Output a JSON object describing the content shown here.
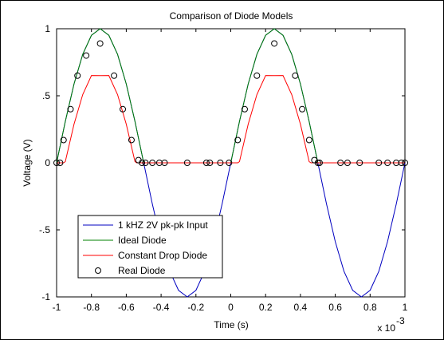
{
  "chart_data": {
    "type": "line",
    "title": "Comparison of Diode Models",
    "xlabel": "Time (s)",
    "ylabel": "Voltage (V)",
    "x_exponent_label": "x 10",
    "x_exponent_power": "-3",
    "xlim": [
      -1,
      1
    ],
    "ylim": [
      -1,
      1
    ],
    "xticks": [
      -1,
      -0.8,
      -0.6,
      -0.4,
      -0.2,
      0,
      0.2,
      0.4,
      0.6,
      0.8,
      1
    ],
    "xtick_labels": [
      "-1",
      "-0.8",
      "-0.6",
      "-0.4",
      "-0.2",
      "0",
      "0.2",
      "0.4",
      "0.6",
      "0.8",
      "1"
    ],
    "yticks": [
      -1,
      -0.5,
      0,
      0.5,
      1
    ],
    "ytick_labels": [
      "-1",
      "-.5",
      "0",
      ".5",
      "1"
    ],
    "grid": false,
    "legend_position": "bottom-left",
    "series": [
      {
        "name": "1 kHZ 2V pk-pk Input",
        "color": "#0000c0",
        "style": "line",
        "x": [
          -1.0,
          -0.95,
          -0.9,
          -0.85,
          -0.8,
          -0.75,
          -0.7,
          -0.65,
          -0.6,
          -0.55,
          -0.5,
          -0.45,
          -0.4,
          -0.35,
          -0.3,
          -0.25,
          -0.2,
          -0.15,
          -0.1,
          -0.05,
          0.0,
          0.05,
          0.1,
          0.15,
          0.2,
          0.25,
          0.3,
          0.35,
          0.4,
          0.45,
          0.5,
          0.55,
          0.6,
          0.65,
          0.7,
          0.75,
          0.8,
          0.85,
          0.9,
          0.95,
          1.0
        ],
        "y": [
          0.0,
          0.309,
          0.588,
          0.809,
          0.951,
          1.0,
          0.951,
          0.809,
          0.588,
          0.309,
          0.0,
          -0.309,
          -0.588,
          -0.809,
          -0.951,
          -1.0,
          -0.951,
          -0.809,
          -0.588,
          -0.309,
          0.0,
          0.309,
          0.588,
          0.809,
          0.951,
          1.0,
          0.951,
          0.809,
          0.588,
          0.309,
          0.0,
          -0.309,
          -0.588,
          -0.809,
          -0.951,
          -1.0,
          -0.951,
          -0.809,
          -0.588,
          -0.309,
          0.0
        ]
      },
      {
        "name": "Ideal Diode",
        "color": "#008000",
        "style": "line",
        "x": [
          -1.0,
          -0.95,
          -0.9,
          -0.85,
          -0.8,
          -0.75,
          -0.7,
          -0.65,
          -0.6,
          -0.55,
          -0.5,
          -0.45,
          -0.4,
          -0.35,
          -0.3,
          -0.25,
          -0.2,
          -0.15,
          -0.1,
          -0.05,
          0.0,
          0.05,
          0.1,
          0.15,
          0.2,
          0.25,
          0.3,
          0.35,
          0.4,
          0.45,
          0.5,
          0.55,
          0.6,
          0.65,
          0.7,
          0.75,
          0.8,
          0.85,
          0.9,
          0.95,
          1.0
        ],
        "y": [
          0.0,
          0.309,
          0.588,
          0.809,
          0.951,
          1.0,
          0.951,
          0.809,
          0.588,
          0.309,
          0.0,
          0,
          0,
          0,
          0,
          0,
          0,
          0,
          0,
          0,
          0.0,
          0.309,
          0.588,
          0.809,
          0.951,
          1.0,
          0.951,
          0.809,
          0.588,
          0.309,
          0.0,
          0,
          0,
          0,
          0,
          0,
          0,
          0,
          0,
          0,
          0.0
        ]
      },
      {
        "name": "Constant Drop Diode",
        "color": "#ff0000",
        "style": "line",
        "x": [
          -1.0,
          -0.96,
          -0.95,
          -0.9,
          -0.85,
          -0.8,
          -0.75,
          -0.7,
          -0.65,
          -0.6,
          -0.55,
          -0.54,
          -0.5,
          -0.45,
          -0.4,
          -0.3,
          -0.2,
          -0.1,
          -0.04,
          0.0,
          0.04,
          0.05,
          0.1,
          0.15,
          0.2,
          0.25,
          0.3,
          0.35,
          0.4,
          0.45,
          0.46,
          0.5,
          0.6,
          0.7,
          0.8,
          0.9,
          0.96,
          1.0
        ],
        "y": [
          0,
          0,
          0.009,
          0.288,
          0.509,
          0.651,
          0.65,
          0.651,
          0.509,
          0.288,
          0.009,
          0,
          0,
          0,
          0,
          0,
          0,
          0,
          0,
          0,
          0,
          0.009,
          0.288,
          0.509,
          0.651,
          0.65,
          0.651,
          0.509,
          0.288,
          0.009,
          0,
          0,
          0,
          0,
          0,
          0,
          0,
          0
        ]
      },
      {
        "name": "Real Diode",
        "color": "#000000",
        "style": "marker-circle",
        "x": [
          -1.0,
          -0.98,
          -0.96,
          -0.92,
          -0.88,
          -0.83,
          -0.75,
          -0.67,
          -0.62,
          -0.57,
          -0.53,
          -0.51,
          -0.49,
          -0.45,
          -0.41,
          -0.38,
          -0.25,
          -0.14,
          -0.12,
          -0.06,
          -0.01,
          0.04,
          0.08,
          0.15,
          0.25,
          0.37,
          0.41,
          0.45,
          0.48,
          0.5,
          0.51,
          0.63,
          0.67,
          0.74,
          0.85,
          0.9,
          0.95,
          0.98,
          1.0
        ],
        "y": [
          0.0,
          0.0,
          0.17,
          0.4,
          0.65,
          0.8,
          0.89,
          0.65,
          0.4,
          0.17,
          0.02,
          0.0,
          0.0,
          0.0,
          0.0,
          0.0,
          0.0,
          0.0,
          0.0,
          0.0,
          0.0,
          0.17,
          0.4,
          0.65,
          0.89,
          0.65,
          0.4,
          0.17,
          0.02,
          0.0,
          0.0,
          0.0,
          0.0,
          0.0,
          0.0,
          0.0,
          0.0,
          0.0,
          0.0
        ]
      }
    ]
  }
}
